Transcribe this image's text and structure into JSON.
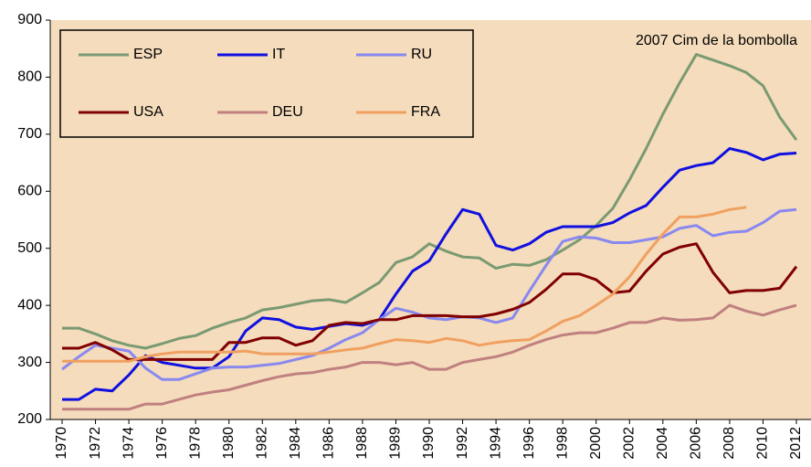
{
  "chart_data": {
    "type": "line",
    "annotation": "2007 Cim de la bombolla",
    "categories": [
      "1970",
      null,
      "1972",
      null,
      "1974",
      null,
      "1976",
      null,
      "1978",
      null,
      "1980",
      null,
      "1982",
      null,
      "1984",
      null,
      "1986",
      null,
      "1988",
      null,
      "1989",
      null,
      "1990",
      null,
      "1992",
      null,
      "1994",
      null,
      "1996",
      null,
      "1998",
      null,
      "2000",
      null,
      "2002",
      null,
      "2004",
      null,
      "2006",
      null,
      "2008",
      null,
      "2010",
      null,
      "2012"
    ],
    "ylim": [
      200,
      900
    ],
    "yticks": [
      200,
      300,
      400,
      500,
      600,
      700,
      800,
      900
    ],
    "background": "#f5dcbc",
    "series": [
      {
        "name": "ESP",
        "color": "#7a9a72",
        "values": [
          360,
          360,
          350,
          338,
          330,
          325,
          333,
          342,
          347,
          360,
          370,
          378,
          392,
          396,
          402,
          408,
          410,
          405,
          422,
          440,
          475,
          485,
          508,
          495,
          485,
          483,
          465,
          472,
          470,
          480,
          497,
          515,
          540,
          570,
          620,
          675,
          735,
          790,
          840,
          830,
          820,
          808,
          785,
          730,
          690
        ]
      },
      {
        "name": "IT",
        "color": "#1010e0",
        "values": [
          235,
          235,
          253,
          250,
          278,
          312,
          300,
          295,
          290,
          290,
          310,
          355,
          378,
          375,
          362,
          358,
          363,
          368,
          365,
          375,
          420,
          460,
          478,
          525,
          568,
          560,
          505,
          497,
          508,
          528,
          538,
          538,
          538,
          545,
          562,
          575,
          607,
          637,
          645,
          650,
          675,
          668,
          655,
          665,
          667
        ]
      },
      {
        "name": "RU",
        "color": "#8888f0",
        "values": [
          288,
          310,
          330,
          325,
          320,
          290,
          270,
          270,
          280,
          290,
          292,
          292,
          295,
          298,
          305,
          312,
          325,
          340,
          352,
          375,
          395,
          388,
          378,
          375,
          380,
          378,
          370,
          378,
          425,
          470,
          512,
          520,
          518,
          510,
          510,
          515,
          520,
          535,
          540,
          522,
          528,
          530,
          545,
          565,
          568
        ]
      },
      {
        "name": "USA",
        "color": "#800000",
        "values": [
          325,
          325,
          335,
          322,
          305,
          305,
          305,
          305,
          305,
          305,
          335,
          335,
          343,
          343,
          330,
          338,
          365,
          370,
          368,
          375,
          375,
          382,
          382,
          382,
          380,
          380,
          385,
          393,
          405,
          428,
          455,
          455,
          445,
          422,
          425,
          460,
          490,
          502,
          508,
          458,
          422,
          426,
          426,
          430,
          468
        ]
      },
      {
        "name": "DEU",
        "color": "#c08080",
        "values": [
          218,
          218,
          218,
          218,
          218,
          227,
          227,
          235,
          243,
          248,
          252,
          260,
          268,
          275,
          280,
          282,
          288,
          292,
          300,
          300,
          296,
          300,
          288,
          288,
          300,
          305,
          310,
          318,
          330,
          340,
          348,
          352,
          352,
          360,
          370,
          370,
          378,
          374,
          375,
          378,
          400,
          390,
          383,
          392,
          400
        ]
      },
      {
        "name": "FRA",
        "color": "#f0a060",
        "values": [
          302,
          302,
          302,
          302,
          302,
          310,
          315,
          318,
          318,
          318,
          318,
          320,
          315,
          315,
          315,
          315,
          318,
          322,
          325,
          333,
          340,
          338,
          335,
          342,
          338,
          330,
          335,
          338,
          340,
          355,
          372,
          382,
          400,
          420,
          450,
          490,
          525,
          555,
          555,
          560,
          568,
          572,
          null,
          null,
          null
        ]
      }
    ]
  }
}
